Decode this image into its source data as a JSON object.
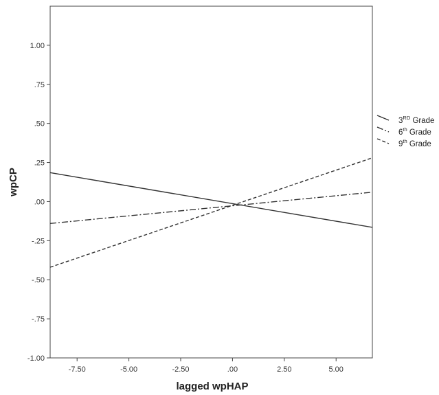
{
  "chart_data": {
    "type": "line",
    "xlabel": "lagged wpHAP",
    "ylabel": "wpCP",
    "xlim": [
      -8.8,
      6.75
    ],
    "ylim": [
      -1.0,
      1.25
    ],
    "x_ticks": [
      {
        "value": -7.5,
        "label": "-7.50"
      },
      {
        "value": -5.0,
        "label": "-5.00"
      },
      {
        "value": -2.5,
        "label": "-2.50"
      },
      {
        "value": 0.0,
        "label": ".00"
      },
      {
        "value": 2.5,
        "label": "2.50"
      },
      {
        "value": 5.0,
        "label": "5.00"
      }
    ],
    "y_ticks": [
      {
        "value": 1.0,
        "label": "1.00"
      },
      {
        "value": 0.75,
        "label": ".75"
      },
      {
        "value": 0.5,
        "label": ".50"
      },
      {
        "value": 0.25,
        "label": ".25"
      },
      {
        "value": 0.0,
        "label": ".00"
      },
      {
        "value": -0.25,
        "label": "-.25"
      },
      {
        "value": -0.5,
        "label": "-.50"
      },
      {
        "value": -0.75,
        "label": "-.75"
      },
      {
        "value": -1.0,
        "label": "-1.00"
      }
    ],
    "grid": false,
    "legend_position": "right",
    "series": [
      {
        "name_base": "3",
        "name_sup": "RD",
        "name_suffix": " Grade",
        "style": "solid",
        "color": "#333333",
        "points": [
          [
            -8.8,
            0.185
          ],
          [
            6.75,
            -0.165
          ]
        ]
      },
      {
        "name_base": "6",
        "name_sup": "th",
        "name_suffix": " Grade",
        "style": "dashdot",
        "color": "#333333",
        "points": [
          [
            -8.8,
            -0.14
          ],
          [
            6.75,
            0.06
          ]
        ]
      },
      {
        "name_base": "9",
        "name_sup": "th",
        "name_suffix": " Grade",
        "style": "dashed",
        "color": "#333333",
        "points": [
          [
            -8.8,
            -0.42
          ],
          [
            6.75,
            0.28
          ]
        ]
      }
    ]
  }
}
